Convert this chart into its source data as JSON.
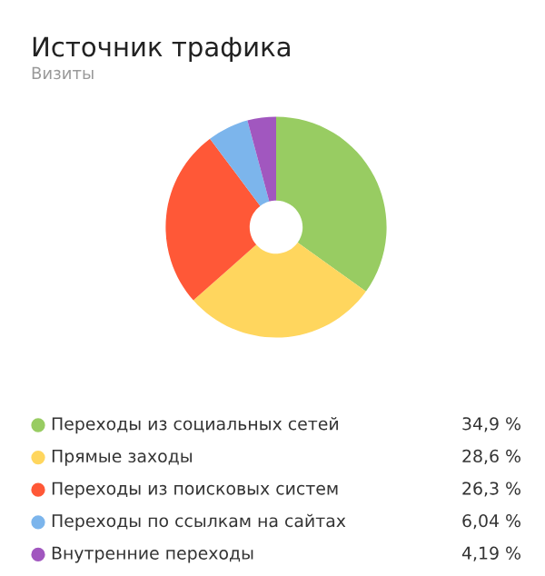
{
  "chart_data": {
    "type": "donut",
    "title": "Источник трафика",
    "subtitle": "Визиты",
    "categories": [
      "Переходы из социальных сетей",
      "Прямые заходы",
      "Переходы из поисковых систем",
      "Переходы по ссылкам на сайтах",
      "Внутренние переходы"
    ],
    "values": [
      34.9,
      28.6,
      26.3,
      6.04,
      4.19
    ],
    "colors": [
      "#98cc62",
      "#ffd65e",
      "#ff5837",
      "#7cb5ec",
      "#a157bf"
    ],
    "value_labels": [
      "34,9 %",
      "28,6 %",
      "26,3 %",
      "6,04 %",
      "4,19 %"
    ],
    "legend": "bottom"
  }
}
